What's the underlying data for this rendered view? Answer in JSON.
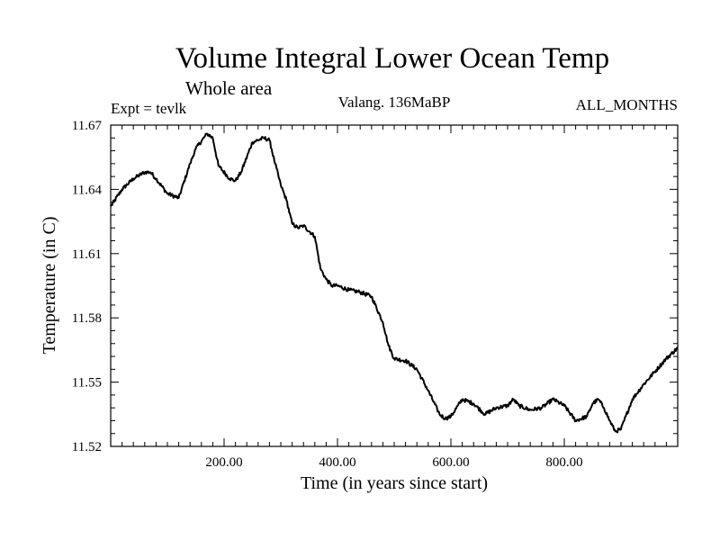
{
  "chart_data": {
    "type": "line",
    "title": "Volume Integral Lower Ocean Temp",
    "subtitle": "Whole area",
    "expt_label": "Expt = tevlk",
    "center_label": "Valang. 136MaBP",
    "right_label": "ALL_MONTHS",
    "xlabel": "Time (in years since start)",
    "ylabel": "Temperature (in C)",
    "xlim": [
      0,
      1000
    ],
    "ylim": [
      11.52,
      11.67
    ],
    "xticks": [
      200,
      400,
      600,
      800
    ],
    "xtick_labels": [
      "200.00",
      "400.00",
      "600.00",
      "800.00"
    ],
    "yticks": [
      11.52,
      11.55,
      11.58,
      11.61,
      11.64,
      11.67
    ],
    "ytick_labels": [
      "11.52",
      "11.55",
      "11.58",
      "11.61",
      "11.64",
      "11.67"
    ],
    "grid": false,
    "series": [
      {
        "name": "Volume Integral Lower Ocean Temp",
        "color": "#000000",
        "x": [
          0,
          20,
          40,
          60,
          70,
          80,
          100,
          120,
          140,
          150,
          170,
          180,
          190,
          210,
          220,
          230,
          250,
          270,
          280,
          290,
          300,
          310,
          320,
          330,
          340,
          360,
          370,
          380,
          390,
          400,
          420,
          440,
          460,
          480,
          490,
          500,
          520,
          540,
          560,
          580,
          590,
          600,
          620,
          640,
          660,
          680,
          700,
          710,
          720,
          740,
          760,
          780,
          800,
          820,
          840,
          850,
          860,
          870,
          880,
          890,
          900,
          920,
          940,
          960,
          980,
          1000
        ],
        "y": [
          11.632,
          11.64,
          11.645,
          11.648,
          11.648,
          11.645,
          11.638,
          11.636,
          11.652,
          11.659,
          11.666,
          11.664,
          11.651,
          11.645,
          11.644,
          11.648,
          11.662,
          11.664,
          11.663,
          11.652,
          11.642,
          11.635,
          11.624,
          11.622,
          11.623,
          11.618,
          11.603,
          11.598,
          11.595,
          11.595,
          11.593,
          11.592,
          11.59,
          11.578,
          11.567,
          11.561,
          11.56,
          11.556,
          11.546,
          11.535,
          11.533,
          11.534,
          11.542,
          11.54,
          11.535,
          11.538,
          11.539,
          11.542,
          11.539,
          11.537,
          11.538,
          11.542,
          11.539,
          11.532,
          11.534,
          11.54,
          11.542,
          11.538,
          11.532,
          11.527,
          11.528,
          11.542,
          11.549,
          11.555,
          11.561,
          11.566
        ]
      }
    ]
  }
}
